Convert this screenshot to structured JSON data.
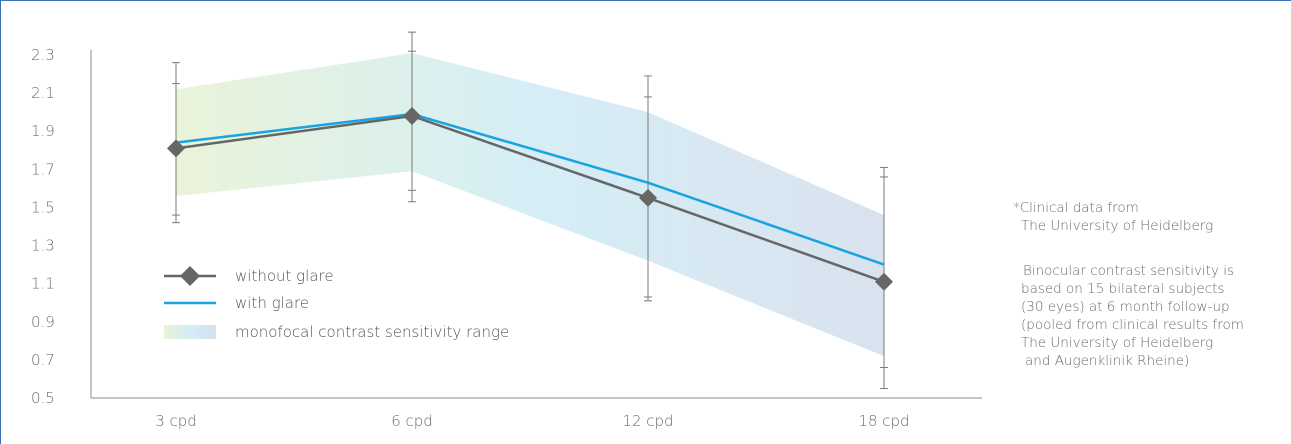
{
  "chart_data": {
    "type": "line",
    "categories": [
      "3 cpd",
      "6 cpd",
      "12 cpd",
      "18 cpd"
    ],
    "y_ticks": [
      "0.5",
      "0.7",
      "0.9",
      "1.1",
      "1.3",
      "1.5",
      "1.7",
      "1.9",
      "2.1",
      "2.3"
    ],
    "ylim": [
      0.5,
      2.3
    ],
    "series": [
      {
        "name": "without glare",
        "values": [
          1.81,
          1.98,
          1.55,
          1.11
        ],
        "error_low": [
          1.46,
          1.59,
          1.03,
          0.66
        ],
        "error_high": [
          2.15,
          2.32,
          2.08,
          1.66
        ],
        "color": "#666666",
        "marker": "diamond"
      },
      {
        "name": "with glare",
        "values": [
          1.84,
          1.99,
          1.63,
          1.2
        ],
        "error_low": [
          1.42,
          1.53,
          1.01,
          0.55
        ],
        "error_high": [
          2.26,
          2.42,
          2.19,
          1.71
        ],
        "color": "#17a4e0",
        "marker": "none"
      }
    ],
    "range_band": {
      "name": "monofocal contrast sensitivity range",
      "low": [
        1.56,
        1.69,
        1.22,
        0.72
      ],
      "high": [
        2.12,
        2.31,
        2.0,
        1.46
      ],
      "gradient": [
        "#e8f3d6",
        "#d3edf6",
        "#d7e1ee"
      ]
    },
    "legend_position": "bottom-left",
    "grid": false
  },
  "notes": {
    "source_lines": [
      "*Clinical data from",
      "The University of Heidelberg"
    ],
    "description_lines": [
      "Binocular contrast sensitivity is",
      "based on 15 bilateral subjects",
      "(30 eyes) at 6 month follow-up",
      "(pooled from clinical results from",
      "The University of Heidelberg",
      "and Augenklinik Rheine)"
    ]
  },
  "colors": {
    "frame": "#3b6fb6",
    "axis": "#8c8c8c"
  }
}
